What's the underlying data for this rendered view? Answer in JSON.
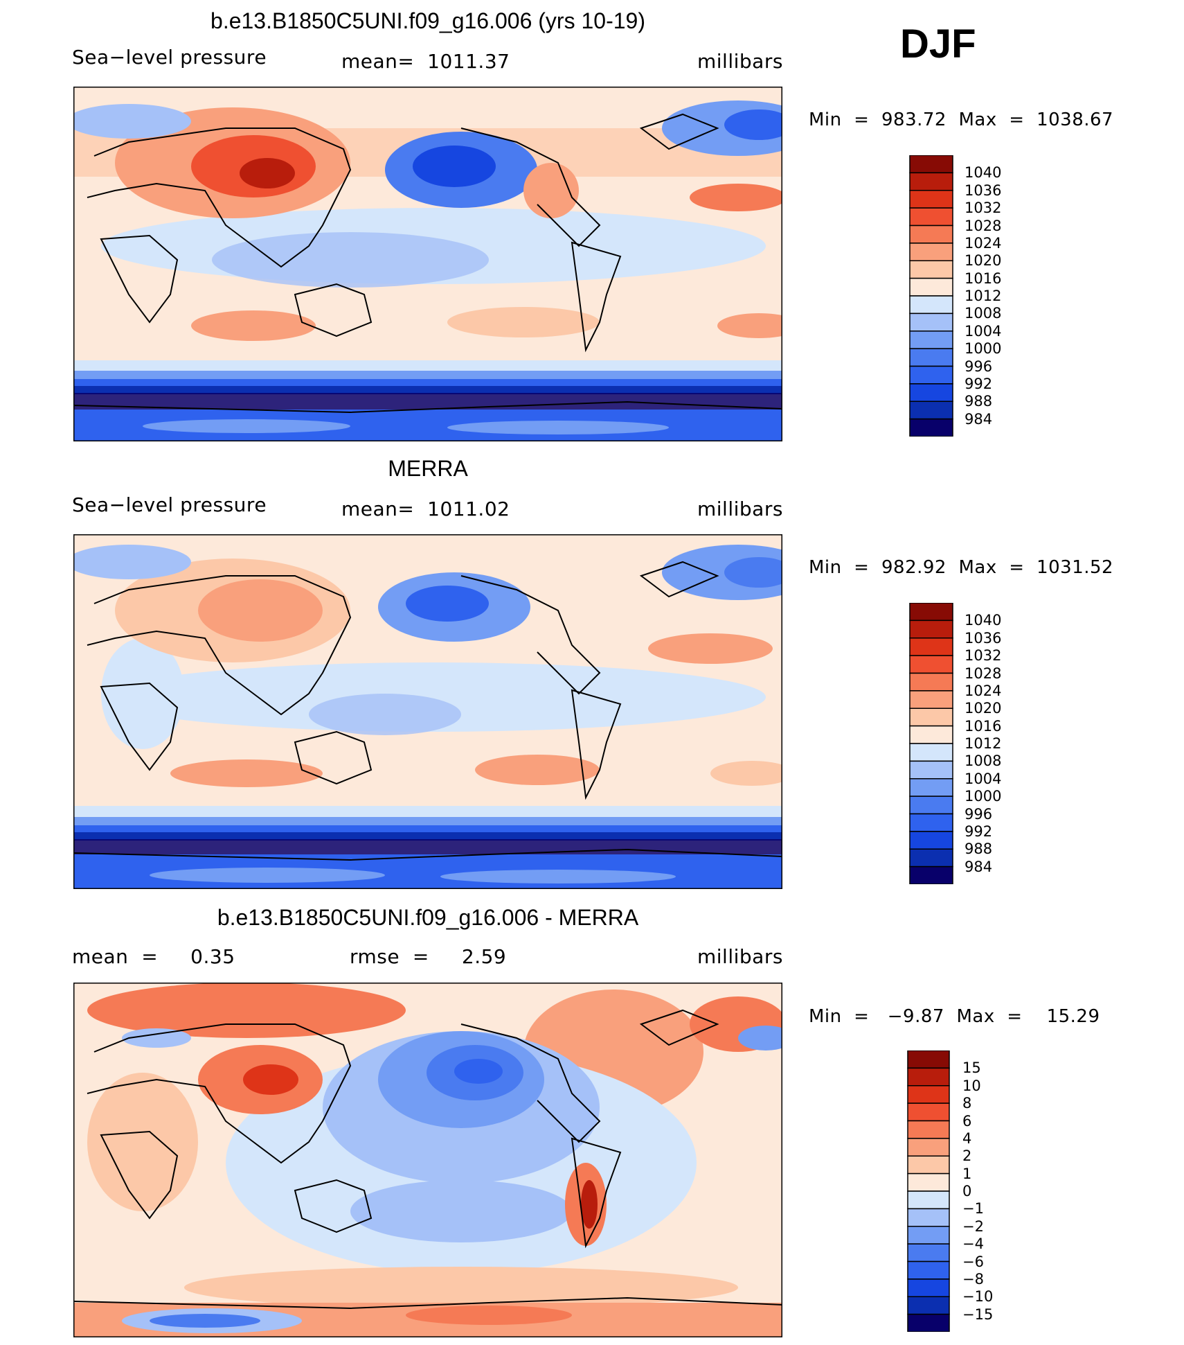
{
  "season": "DJF",
  "panels": [
    {
      "title": "b.e13.B1850C5UNI.f09_g16.006 (yrs 10-19)",
      "left": "Sea−level pressure",
      "center": "mean=  1011.37",
      "right": "millibars",
      "minmax": "Min  =  983.72  Max  =  1038.67",
      "colors": [
        "#08006a",
        "#0b2fb0",
        "#1646e0",
        "#2f62ee",
        "#4a7bf0",
        "#739df4",
        "#a5c1f8",
        "#d4e6fb",
        "#fde9da",
        "#fcc8a8",
        "#f9a07c",
        "#f57a55",
        "#ef5031",
        "#de3418",
        "#b81d0c",
        "#870b05"
      ],
      "labels": [
        "1040",
        "1036",
        "1032",
        "1028",
        "1024",
        "1020",
        "1016",
        "1012",
        "1008",
        "1004",
        "1000",
        "996",
        "992",
        "988",
        "984"
      ]
    },
    {
      "title": "MERRA",
      "left": "Sea−level pressure",
      "center": "mean=  1011.02",
      "right": "millibars",
      "minmax": "Min  =  982.92  Max  =  1031.52",
      "colors": [
        "#08006a",
        "#0b2fb0",
        "#1646e0",
        "#2f62ee",
        "#4a7bf0",
        "#739df4",
        "#a5c1f8",
        "#d4e6fb",
        "#fde9da",
        "#fcc8a8",
        "#f9a07c",
        "#f57a55",
        "#ef5031",
        "#de3418",
        "#b81d0c",
        "#870b05"
      ],
      "labels": [
        "1040",
        "1036",
        "1032",
        "1028",
        "1024",
        "1020",
        "1016",
        "1012",
        "1008",
        "1004",
        "1000",
        "996",
        "992",
        "988",
        "984"
      ]
    },
    {
      "title": "b.e13.B1850C5UNI.f09_g16.006 - MERRA",
      "left": "mean  =     0.35",
      "center": "rmse  =     2.59",
      "right": "millibars",
      "minmax": "Min  =   −9.87  Max  =    15.29",
      "colors": [
        "#08006a",
        "#0b2fb0",
        "#1646e0",
        "#2f62ee",
        "#4a7bf0",
        "#739df4",
        "#a5c1f8",
        "#d4e6fb",
        "#fde9da",
        "#fcc8a8",
        "#f9a07c",
        "#f57a55",
        "#ef5031",
        "#de3418",
        "#b81d0c",
        "#870b05"
      ],
      "labels": [
        "15",
        "10",
        "8",
        "6",
        "4",
        "2",
        "1",
        "0",
        "−1",
        "−2",
        "−4",
        "−6",
        "−8",
        "−10",
        "−15"
      ]
    }
  ]
}
